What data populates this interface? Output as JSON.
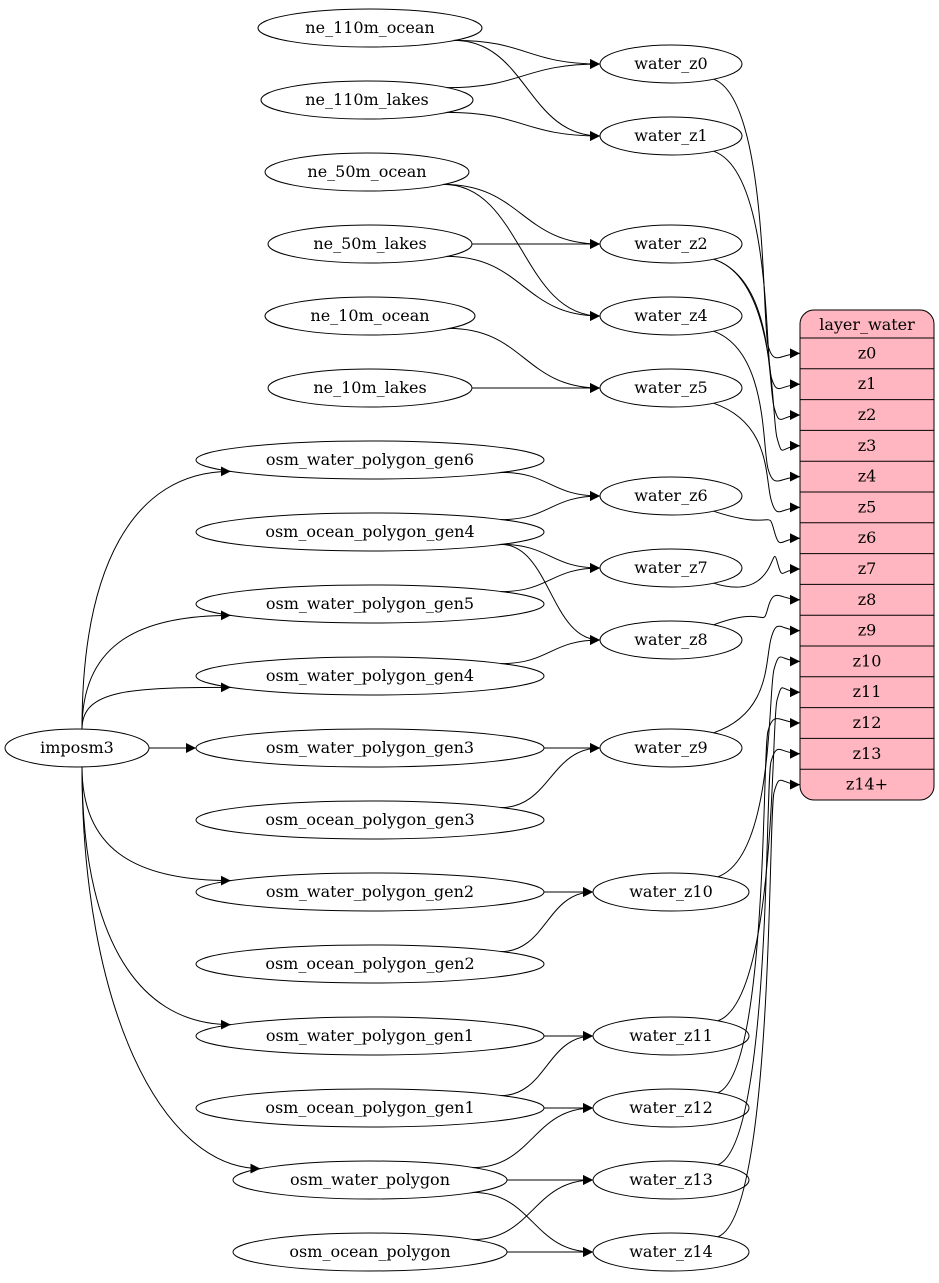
{
  "nodes": [
    {
      "id": "ne_110m_ocean",
      "label": "ne_110m_ocean"
    },
    {
      "id": "ne_110m_lakes",
      "label": "ne_110m_lakes"
    },
    {
      "id": "ne_50m_ocean",
      "label": "ne_50m_ocean"
    },
    {
      "id": "ne_50m_lakes",
      "label": "ne_50m_lakes"
    },
    {
      "id": "ne_10m_ocean",
      "label": "ne_10m_ocean"
    },
    {
      "id": "ne_10m_lakes",
      "label": "ne_10m_lakes"
    },
    {
      "id": "osm_water_polygon_gen6",
      "label": "osm_water_polygon_gen6"
    },
    {
      "id": "osm_ocean_polygon_gen4",
      "label": "osm_ocean_polygon_gen4"
    },
    {
      "id": "osm_water_polygon_gen5",
      "label": "osm_water_polygon_gen5"
    },
    {
      "id": "osm_water_polygon_gen4",
      "label": "osm_water_polygon_gen4"
    },
    {
      "id": "osm_water_polygon_gen3",
      "label": "osm_water_polygon_gen3"
    },
    {
      "id": "osm_ocean_polygon_gen3",
      "label": "osm_ocean_polygon_gen3"
    },
    {
      "id": "osm_water_polygon_gen2",
      "label": "osm_water_polygon_gen2"
    },
    {
      "id": "osm_ocean_polygon_gen2",
      "label": "osm_ocean_polygon_gen2"
    },
    {
      "id": "osm_water_polygon_gen1",
      "label": "osm_water_polygon_gen1"
    },
    {
      "id": "osm_ocean_polygon_gen1",
      "label": "osm_ocean_polygon_gen1"
    },
    {
      "id": "osm_water_polygon",
      "label": "osm_water_polygon"
    },
    {
      "id": "osm_ocean_polygon",
      "label": "osm_ocean_polygon"
    },
    {
      "id": "imposm3",
      "label": "imposm3"
    },
    {
      "id": "water_z0",
      "label": "water_z0"
    },
    {
      "id": "water_z1",
      "label": "water_z1"
    },
    {
      "id": "water_z2",
      "label": "water_z2"
    },
    {
      "id": "water_z4",
      "label": "water_z4"
    },
    {
      "id": "water_z5",
      "label": "water_z5"
    },
    {
      "id": "water_z6",
      "label": "water_z6"
    },
    {
      "id": "water_z7",
      "label": "water_z7"
    },
    {
      "id": "water_z8",
      "label": "water_z8"
    },
    {
      "id": "water_z9",
      "label": "water_z9"
    },
    {
      "id": "water_z10",
      "label": "water_z10"
    },
    {
      "id": "water_z11",
      "label": "water_z11"
    },
    {
      "id": "water_z12",
      "label": "water_z12"
    },
    {
      "id": "water_z13",
      "label": "water_z13"
    },
    {
      "id": "water_z14",
      "label": "water_z14"
    }
  ],
  "layer": {
    "title": "layer_water",
    "fill": "#ffb6c1",
    "rows": [
      "z0",
      "z1",
      "z2",
      "z3",
      "z4",
      "z5",
      "z6",
      "z7",
      "z8",
      "z9",
      "z10",
      "z11",
      "z12",
      "z13",
      "z14+"
    ]
  },
  "edges": [
    [
      "ne_110m_ocean",
      "water_z0"
    ],
    [
      "ne_110m_ocean",
      "water_z1"
    ],
    [
      "ne_110m_lakes",
      "water_z0"
    ],
    [
      "ne_110m_lakes",
      "water_z1"
    ],
    [
      "ne_50m_ocean",
      "water_z2"
    ],
    [
      "ne_50m_ocean",
      "water_z4"
    ],
    [
      "ne_50m_lakes",
      "water_z2"
    ],
    [
      "ne_50m_lakes",
      "water_z4"
    ],
    [
      "ne_10m_ocean",
      "water_z5"
    ],
    [
      "ne_10m_lakes",
      "water_z5"
    ],
    [
      "osm_water_polygon_gen6",
      "water_z6"
    ],
    [
      "osm_ocean_polygon_gen4",
      "water_z6"
    ],
    [
      "osm_ocean_polygon_gen4",
      "water_z7"
    ],
    [
      "osm_ocean_polygon_gen4",
      "water_z8"
    ],
    [
      "osm_water_polygon_gen5",
      "water_z7"
    ],
    [
      "osm_water_polygon_gen4",
      "water_z8"
    ],
    [
      "osm_water_polygon_gen3",
      "water_z9"
    ],
    [
      "osm_ocean_polygon_gen3",
      "water_z9"
    ],
    [
      "osm_water_polygon_gen2",
      "water_z10"
    ],
    [
      "osm_ocean_polygon_gen2",
      "water_z10"
    ],
    [
      "osm_water_polygon_gen1",
      "water_z11"
    ],
    [
      "osm_ocean_polygon_gen1",
      "water_z11"
    ],
    [
      "osm_ocean_polygon_gen1",
      "water_z12"
    ],
    [
      "osm_water_polygon",
      "water_z12"
    ],
    [
      "osm_water_polygon",
      "water_z13"
    ],
    [
      "osm_water_polygon",
      "water_z14"
    ],
    [
      "osm_ocean_polygon",
      "water_z13"
    ],
    [
      "osm_ocean_polygon",
      "water_z14"
    ],
    [
      "imposm3",
      "osm_water_polygon_gen6"
    ],
    [
      "imposm3",
      "osm_water_polygon_gen5"
    ],
    [
      "imposm3",
      "osm_water_polygon_gen4"
    ],
    [
      "imposm3",
      "osm_water_polygon_gen3"
    ],
    [
      "imposm3",
      "osm_water_polygon_gen2"
    ],
    [
      "imposm3",
      "osm_water_polygon_gen1"
    ],
    [
      "imposm3",
      "osm_water_polygon"
    ]
  ],
  "layer_edges": [
    [
      "water_z0",
      "z0"
    ],
    [
      "water_z1",
      "z1"
    ],
    [
      "water_z2",
      "z2"
    ],
    [
      "water_z2",
      "z3"
    ],
    [
      "water_z4",
      "z4"
    ],
    [
      "water_z5",
      "z5"
    ],
    [
      "water_z6",
      "z6"
    ],
    [
      "water_z7",
      "z7"
    ],
    [
      "water_z8",
      "z8"
    ],
    [
      "water_z9",
      "z9"
    ],
    [
      "water_z10",
      "z10"
    ],
    [
      "water_z11",
      "z11"
    ],
    [
      "water_z12",
      "z12"
    ],
    [
      "water_z13",
      "z13"
    ],
    [
      "water_z14",
      "z14+"
    ]
  ]
}
